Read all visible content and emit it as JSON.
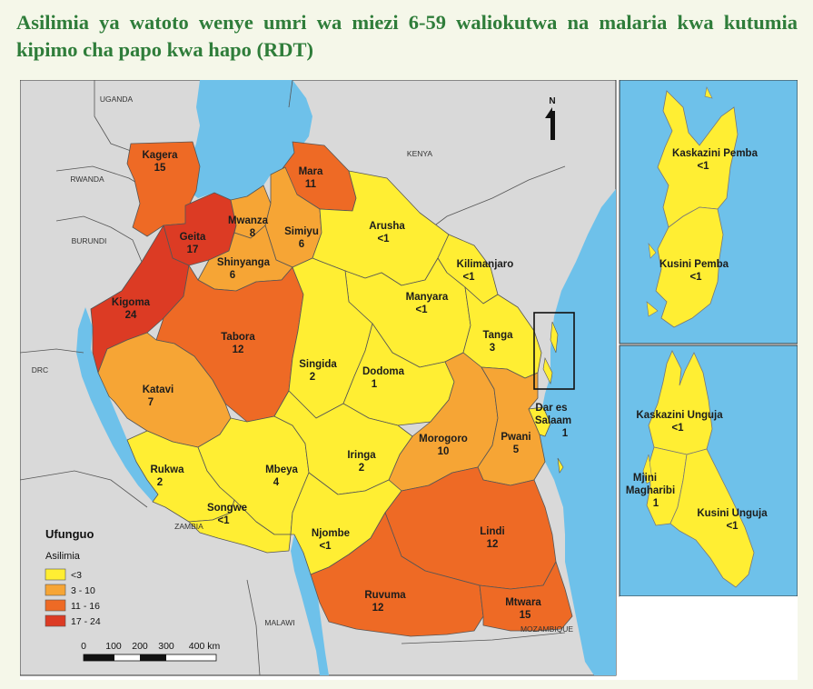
{
  "title": "Asilimia ya watoto wenye umri wa miezi 6-59 waliokutwa na malaria kwa kutumia kipimo cha papo kwa hapo (RDT)",
  "north_label": "N",
  "countries": {
    "uganda": "UGANDA",
    "kenya": "KENYA",
    "rwanda": "RWANDA",
    "burundi": "BURUNDI",
    "drc": "DRC",
    "zambia": "ZAMBIA",
    "malawi": "MALAWI",
    "mozambique": "MOZAMBIQUE"
  },
  "colors": {
    "water": "#6ec1ea",
    "land": "#d9d9d9",
    "border": "#555555",
    "lt3": "#ffee33",
    "c3_10": "#f6a535",
    "c11_16": "#ee6a25",
    "c17_24": "#dc3b24"
  },
  "legend": {
    "title": "Ufunguo",
    "subtitle": "Asilimia",
    "items": [
      {
        "label": "<3",
        "color": "#ffee33"
      },
      {
        "label": "3 - 10",
        "color": "#f6a535"
      },
      {
        "label": "11 - 16",
        "color": "#ee6a25"
      },
      {
        "label": "17 - 24",
        "color": "#dc3b24"
      }
    ]
  },
  "scale": {
    "ticks": [
      "0",
      "100",
      "200",
      "300",
      "400 km"
    ]
  },
  "regions": {
    "kagera": {
      "name": "Kagera",
      "value": "15"
    },
    "mara": {
      "name": "Mara",
      "value": "11"
    },
    "geita": {
      "name": "Geita",
      "value": "17"
    },
    "mwanza": {
      "name": "Mwanza",
      "value": "8"
    },
    "simiyu": {
      "name": "Simiyu",
      "value": "6"
    },
    "shinyanga": {
      "name": "Shinyanga",
      "value": "6"
    },
    "arusha": {
      "name": "Arusha",
      "value": "<1"
    },
    "kilimanjaro": {
      "name": "Kilimanjaro",
      "value": "<1"
    },
    "manyara": {
      "name": "Manyara",
      "value": "<1"
    },
    "tanga": {
      "name": "Tanga",
      "value": "3"
    },
    "kigoma": {
      "name": "Kigoma",
      "value": "24"
    },
    "tabora": {
      "name": "Tabora",
      "value": "12"
    },
    "singida": {
      "name": "Singida",
      "value": "2"
    },
    "dodoma": {
      "name": "Dodoma",
      "value": "1"
    },
    "katavi": {
      "name": "Katavi",
      "value": "7"
    },
    "morogoro": {
      "name": "Morogoro",
      "value": "10"
    },
    "pwani": {
      "name": "Pwani",
      "value": "5"
    },
    "dar": {
      "name1": "Dar es",
      "name2": "Salaam",
      "value": "1"
    },
    "rukwa": {
      "name": "Rukwa",
      "value": "2"
    },
    "mbeya": {
      "name": "Mbeya",
      "value": "4"
    },
    "iringa": {
      "name": "Iringa",
      "value": "2"
    },
    "songwe": {
      "name": "Songwe",
      "value": "<1"
    },
    "njombe": {
      "name": "Njombe",
      "value": "<1"
    },
    "lindi": {
      "name": "Lindi",
      "value": "12"
    },
    "ruvuma": {
      "name": "Ruvuma",
      "value": "12"
    },
    "mtwara": {
      "name": "Mtwara",
      "value": "15"
    }
  },
  "pemba": {
    "north": {
      "name": "Kaskazini Pemba",
      "value": "<1"
    },
    "south": {
      "name": "Kusini Pemba",
      "value": "<1"
    }
  },
  "unguja": {
    "north": {
      "name": "Kaskazini Unguja",
      "value": "<1"
    },
    "urban_west": {
      "name1": "Mjini",
      "name2": "Magharibi",
      "value": "1"
    },
    "south": {
      "name": "Kusini Unguja",
      "value": "<1"
    }
  }
}
